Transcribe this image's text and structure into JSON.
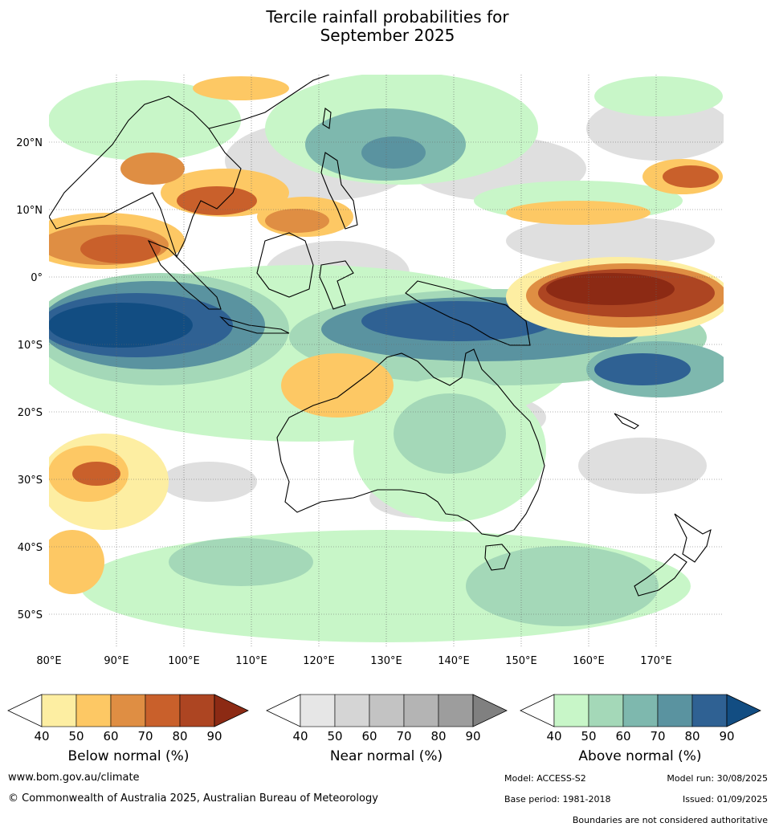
{
  "title_line1": "Tercile rainfall probabilities for",
  "title_line2": "September 2025",
  "map": {
    "lon_labels": [
      "80°E",
      "90°E",
      "100°E",
      "110°E",
      "120°E",
      "130°E",
      "140°E",
      "150°E",
      "160°E",
      "170°E"
    ],
    "lat_labels": [
      "20°N",
      "10°N",
      "0°",
      "10°S",
      "20°S",
      "30°S",
      "40°S",
      "50°S"
    ],
    "colors": {
      "below": [
        "#fdeea2",
        "#fdc864",
        "#df8e43",
        "#c9602b",
        "#ad4522",
        "#8c2a14"
      ],
      "near": [
        "#e6e6e6",
        "#d5d5d5",
        "#c3c3c3",
        "#b4b4b4",
        "#9d9d9d",
        "#808080"
      ],
      "above": [
        "#c8f6c8",
        "#a4d8b8",
        "#7eb8ae",
        "#5a93a0",
        "#2f6193",
        "#124d82"
      ],
      "coast": "#000000",
      "borders": "#999999"
    }
  },
  "colorbars": [
    {
      "label": "Below normal (%)",
      "ticks": [
        "40",
        "50",
        "60",
        "70",
        "80",
        "90"
      ],
      "palette": "below"
    },
    {
      "label": "Near normal (%)",
      "ticks": [
        "40",
        "50",
        "60",
        "70",
        "80",
        "90"
      ],
      "palette": "near"
    },
    {
      "label": "Above normal (%)",
      "ticks": [
        "40",
        "50",
        "60",
        "70",
        "80",
        "90"
      ],
      "palette": "above"
    }
  ],
  "footer": {
    "website": "www.bom.gov.au/climate",
    "copyright": "© Commonwealth of Australia 2025, Australian Bureau of Meteorology",
    "model": "Model: ACCESS-S2",
    "model_run": "Model run: 30/08/2025",
    "base_period": "Base period: 1981-2018",
    "issued": "Issued: 01/09/2025",
    "boundaries": "Boundaries are not considered authoritative"
  }
}
